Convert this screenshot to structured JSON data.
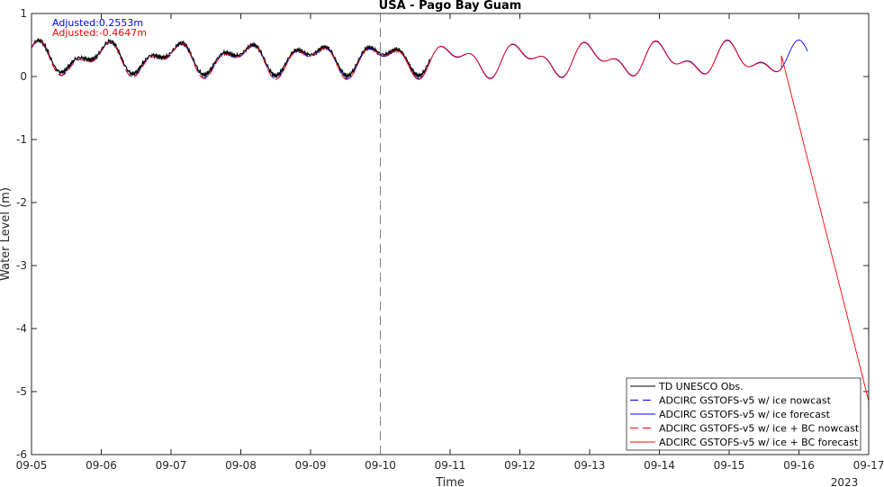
{
  "chart_data": {
    "type": "line",
    "title": "USA - Pago Bay Guam",
    "xlabel": "Time",
    "ylabel": "Water Level (m)",
    "year_label": "2023",
    "xlim": [
      "09-05",
      "09-17"
    ],
    "x_ticks": [
      "09-05",
      "09-06",
      "09-07",
      "09-08",
      "09-09",
      "09-10",
      "09-11",
      "09-12",
      "09-13",
      "09-14",
      "09-15",
      "09-16",
      "09-17"
    ],
    "ylim": [
      -6,
      1
    ],
    "y_ticks": [
      1,
      0,
      -1,
      -2,
      -3,
      -4,
      -5,
      -6
    ],
    "grid": false,
    "legend_position": "bottom-right",
    "nowcast_forecast_split": "09-10",
    "annotations": [
      {
        "text": "Adjusted:0.2553m",
        "color": "#0000ff"
      },
      {
        "text": "Adjusted:-0.4647m",
        "color": "#ff0000"
      }
    ],
    "series": [
      {
        "name": "TD UNESCO Obs.",
        "color": "#000000",
        "style": "solid",
        "start": "09-05",
        "end": "09-10 17:00",
        "mean": 0.3,
        "semi_amp": 0.12,
        "diurnal_amp": 0.17
      },
      {
        "name": "ADCIRC GSTOFS-v5 w/ ice nowcast",
        "color": "#0000ff",
        "style": "dashed",
        "start": "09-05",
        "end": "09-10",
        "mean": 0.27,
        "semi_amp": 0.13,
        "diurnal_amp": 0.18
      },
      {
        "name": "ADCIRC GSTOFS-v5 w/ ice forecast",
        "color": "#0000ff",
        "style": "solid",
        "start": "09-10",
        "end": "09-16 03:00",
        "mean": 0.27,
        "semi_amp": 0.13,
        "diurnal_amp": 0.18
      },
      {
        "name": "ADCIRC GSTOFS-v5 w/ ice + BC nowcast",
        "color": "#ff0000",
        "style": "dashed",
        "start": "09-05",
        "end": "09-10",
        "mean": 0.27,
        "semi_amp": 0.13,
        "diurnal_amp": 0.19
      },
      {
        "name": "ADCIRC GSTOFS-v5 w/ ice + BC forecast",
        "color": "#ff0000",
        "style": "solid",
        "start": "09-10",
        "end": "09-15 18:00",
        "mean": 0.27,
        "semi_amp": 0.13,
        "diurnal_amp": 0.19,
        "tail": [
          [
            "09-15 18:00",
            0.33
          ],
          [
            "09-17",
            -5.15
          ]
        ]
      }
    ]
  }
}
